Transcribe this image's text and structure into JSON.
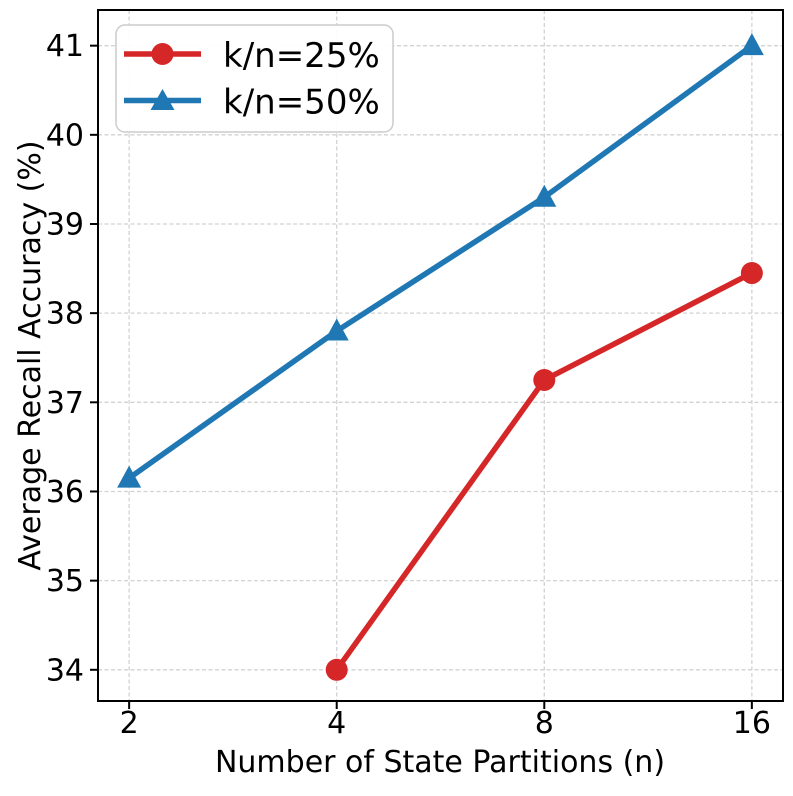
{
  "chart_data": {
    "type": "line",
    "title": "",
    "xlabel": "Number of State Partitions (n)",
    "ylabel": "Average Recall Accuracy (%)",
    "x_scale": "log2",
    "x_ticks": [
      2,
      4,
      8,
      16
    ],
    "x_tick_labels": [
      "2",
      "4",
      "8",
      "16"
    ],
    "y_ticks": [
      34,
      35,
      36,
      37,
      38,
      39,
      40,
      41
    ],
    "y_tick_labels": [
      "34",
      "35",
      "36",
      "37",
      "38",
      "39",
      "40",
      "41"
    ],
    "ylim": [
      33.65,
      41.4
    ],
    "grid": "dashed",
    "grid_color": "#d2d2d2",
    "axis_color": "#000000",
    "legend": {
      "position": "upper-left",
      "entries": [
        "k/n=25%",
        "k/n=50%"
      ]
    },
    "series": [
      {
        "name": "k/n=25%",
        "marker": "circle",
        "color": "#d62728",
        "x": [
          4,
          8,
          16
        ],
        "values": [
          34.0,
          37.25,
          38.45
        ]
      },
      {
        "name": "k/n=50%",
        "marker": "triangle",
        "color": "#1f77b4",
        "x": [
          2,
          4,
          8,
          16
        ],
        "values": [
          36.15,
          37.8,
          39.3,
          41.0
        ]
      }
    ]
  }
}
